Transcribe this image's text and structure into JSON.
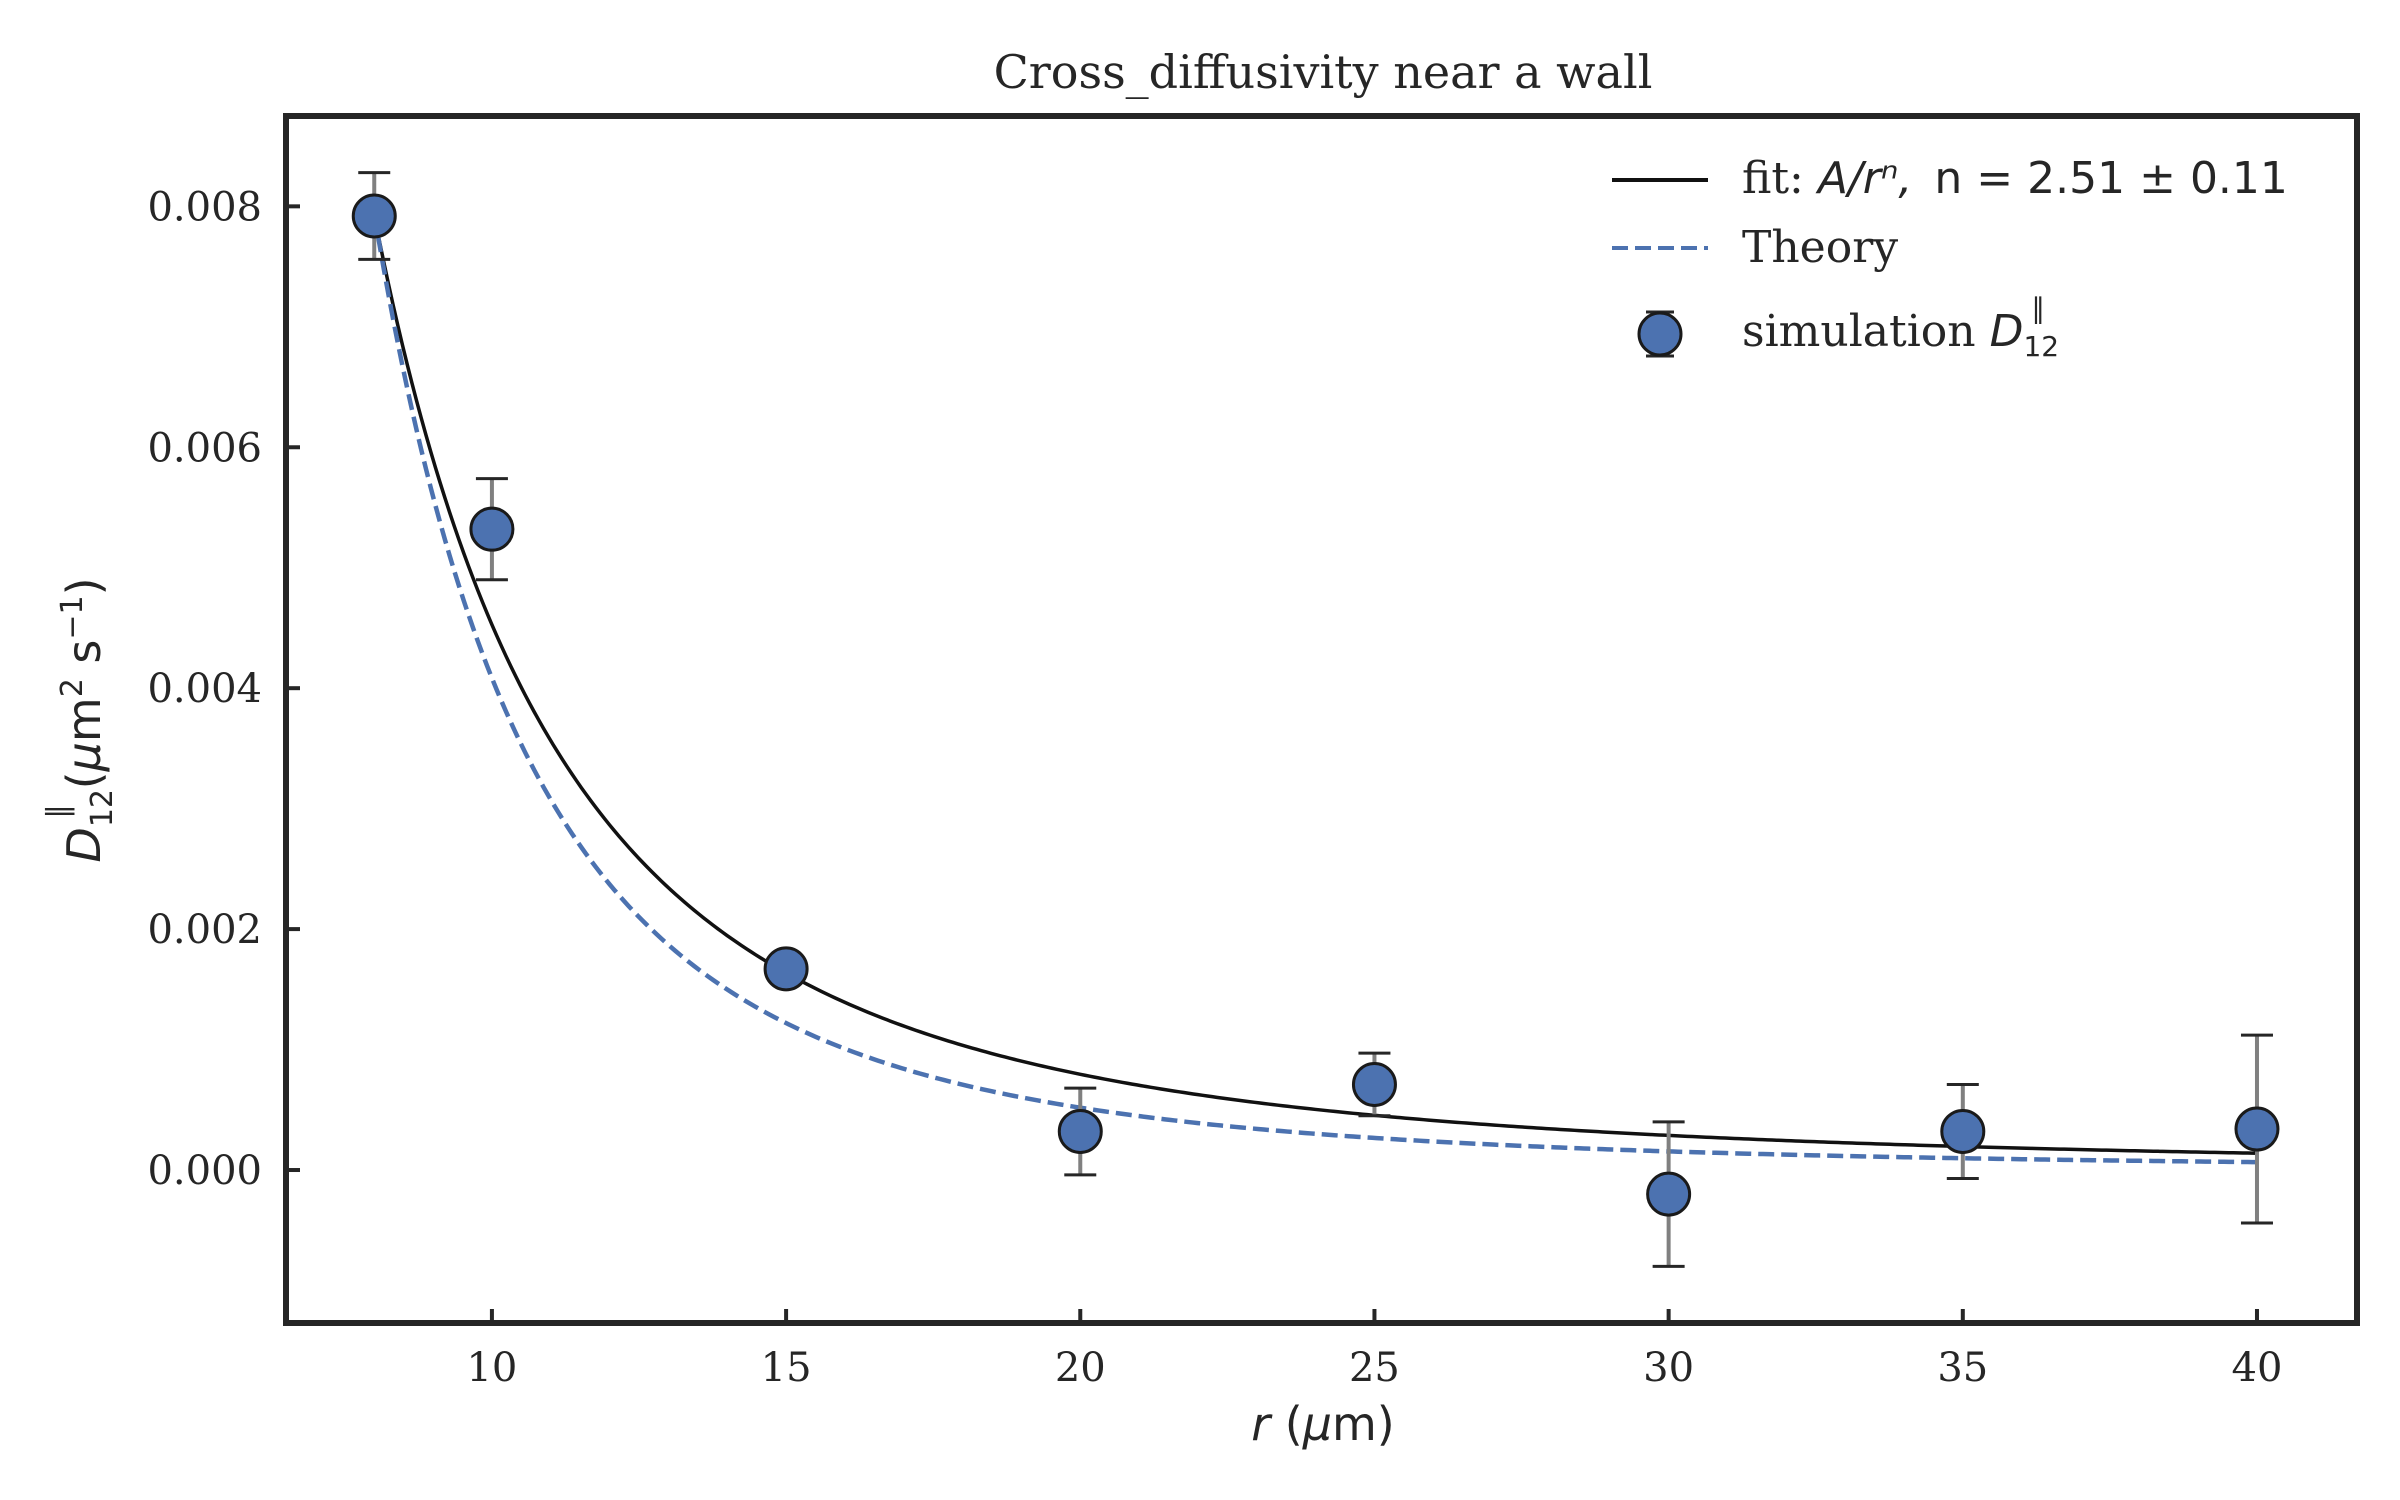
{
  "chart_data": {
    "type": "scatter",
    "title": "Cross_diffusivity near a wall",
    "xlabel": "r (μm)",
    "ylabel": "D12∥ (μm² s⁻¹)",
    "xlim": [
      6.5,
      41.7
    ],
    "ylim": [
      -0.00127,
      0.00875
    ],
    "x_ticks": [
      "10",
      "15",
      "20",
      "25",
      "30",
      "35",
      "40"
    ],
    "y_ticks": [
      "0.000",
      "0.002",
      "0.004",
      "0.006",
      "0.008"
    ],
    "grid": false,
    "legend_position": "top-right",
    "legend": {
      "fit_prefix": "fit: ",
      "fit_formula": "A/rⁿ,",
      "fit_exponent": "n = 2.51 ± 0.11",
      "theory": "Theory",
      "simulation": "simulation D12∥"
    },
    "series": [
      {
        "name": "simulation D12∥",
        "kind": "points_with_errorbars",
        "color": "#4c72b0",
        "x": [
          8,
          10,
          15,
          20,
          25,
          30,
          35,
          40
        ],
        "y": [
          0.00792,
          0.00532,
          0.00167,
          0.00032,
          0.00071,
          -0.0002,
          0.00032,
          0.00034
        ],
        "yerr": [
          0.00036,
          0.00042,
          1e-05,
          0.00036,
          0.00026,
          0.0006,
          0.00039,
          0.00078
        ]
      },
      {
        "name": "fit",
        "kind": "power_law",
        "color": "#111111",
        "A": 1.465,
        "n": 2.51
      },
      {
        "name": "Theory",
        "kind": "power_law",
        "color": "#4c72b0",
        "dashed": true,
        "A": 3.9,
        "n": 2.98
      }
    ]
  }
}
